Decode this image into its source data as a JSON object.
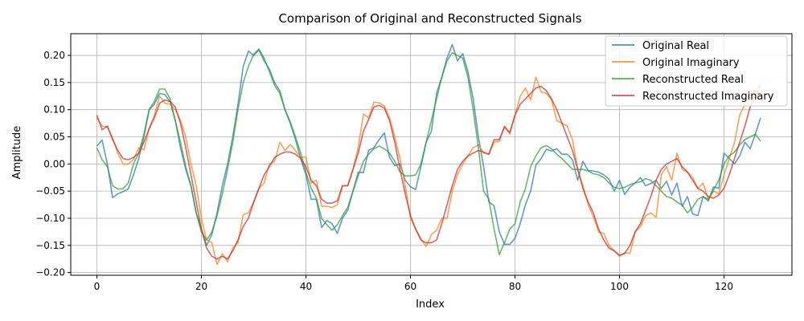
{
  "chart_data": {
    "type": "line",
    "title": "Comparison of Original and Reconstructed Signals",
    "xlabel": "Index",
    "ylabel": "Amplitude",
    "xlim": [
      -5,
      133
    ],
    "ylim": [
      -0.205,
      0.24
    ],
    "xticks": [
      0,
      20,
      40,
      60,
      80,
      100,
      120
    ],
    "yticks": [
      -0.2,
      -0.15,
      -0.1,
      -0.05,
      0.0,
      0.05,
      0.1,
      0.15,
      0.2
    ],
    "ytick_labels": [
      "−0.20",
      "−0.15",
      "−0.10",
      "−0.05",
      "0.00",
      "0.05",
      "0.10",
      "0.15",
      "0.20"
    ],
    "grid": true,
    "legend_position": "top-right",
    "series": [
      {
        "name": "Original Real",
        "color": "#1f77b4",
        "values": [
          0.033,
          0.044,
          0.0,
          -0.062,
          -0.055,
          -0.051,
          -0.046,
          -0.02,
          0.01,
          0.05,
          0.1,
          0.11,
          0.13,
          0.128,
          0.115,
          0.08,
          0.03,
          -0.01,
          -0.04,
          -0.09,
          -0.12,
          -0.15,
          -0.13,
          -0.09,
          -0.04,
          0.0,
          0.05,
          0.11,
          0.18,
          0.208,
          0.2,
          0.21,
          0.19,
          0.175,
          0.15,
          0.135,
          0.1,
          0.075,
          0.045,
          0.01,
          -0.02,
          -0.065,
          -0.065,
          -0.117,
          -0.104,
          -0.11,
          -0.128,
          -0.1,
          -0.085,
          -0.05,
          -0.015,
          -0.016,
          0.025,
          0.03,
          0.045,
          0.057,
          0.012,
          -0.003,
          0.0,
          -0.03,
          -0.042,
          -0.047,
          -0.005,
          0.04,
          0.06,
          0.13,
          0.16,
          0.195,
          0.22,
          0.19,
          0.203,
          0.17,
          0.12,
          0.05,
          -0.005,
          -0.07,
          -0.077,
          -0.125,
          -0.148,
          -0.148,
          -0.137,
          -0.11,
          -0.075,
          -0.05,
          -0.002,
          0.01,
          0.027,
          0.024,
          0.028,
          0.018,
          0.018,
          0.008,
          -0.03,
          0.005,
          -0.012,
          -0.013,
          -0.015,
          -0.02,
          -0.028,
          -0.05,
          -0.03,
          -0.056,
          -0.043,
          -0.035,
          -0.025,
          -0.04,
          -0.036,
          -0.03,
          -0.045,
          -0.032,
          -0.057,
          -0.035,
          -0.078,
          -0.06,
          -0.092,
          -0.095,
          -0.06,
          -0.068,
          -0.042,
          -0.045,
          0.02,
          0.01,
          0.0,
          0.015,
          0.04,
          0.028,
          0.055,
          0.085
        ]
      },
      {
        "name": "Original Imaginary",
        "color": "#ff7f0e",
        "values": [
          0.085,
          0.07,
          0.068,
          0.048,
          0.02,
          0.0,
          0.0,
          0.008,
          0.03,
          0.026,
          0.065,
          0.09,
          0.125,
          0.112,
          0.11,
          0.1,
          0.08,
          0.05,
          0.0,
          -0.04,
          -0.1,
          -0.14,
          -0.145,
          -0.185,
          -0.165,
          -0.18,
          -0.155,
          -0.145,
          -0.093,
          -0.09,
          -0.07,
          -0.045,
          -0.035,
          0.0,
          0.005,
          0.04,
          0.025,
          0.036,
          0.025,
          0.012,
          0.013,
          -0.035,
          -0.03,
          -0.078,
          -0.078,
          -0.08,
          -0.075,
          -0.04,
          -0.04,
          -0.01,
          0.03,
          0.092,
          0.085,
          0.114,
          0.113,
          0.107,
          0.085,
          0.05,
          0.01,
          -0.04,
          -0.1,
          -0.12,
          -0.138,
          -0.152,
          -0.13,
          -0.122,
          -0.1,
          -0.1,
          -0.05,
          -0.02,
          0.0,
          0.015,
          0.03,
          0.035,
          0.02,
          0.018,
          0.04,
          0.042,
          0.07,
          0.055,
          0.09,
          0.125,
          0.14,
          0.118,
          0.16,
          0.133,
          0.13,
          0.118,
          0.08,
          0.075,
          0.07,
          0.045,
          -0.01,
          -0.04,
          -0.075,
          -0.097,
          -0.125,
          -0.128,
          -0.15,
          -0.16,
          -0.17,
          -0.163,
          -0.165,
          -0.125,
          -0.115,
          -0.095,
          -0.09,
          -0.098,
          -0.02,
          -0.005,
          -0.03,
          0.02,
          -0.01,
          -0.015,
          -0.025,
          -0.045,
          -0.035,
          -0.065,
          -0.05,
          -0.055,
          -0.02,
          0.01,
          0.04,
          0.09,
          0.11,
          0.13,
          0.135,
          0.148
        ]
      },
      {
        "name": "Reconstructed Real",
        "color": "#2ca02c",
        "values": [
          0.03,
          0.008,
          -0.005,
          -0.04,
          -0.046,
          -0.046,
          -0.035,
          0.0,
          0.02,
          0.055,
          0.1,
          0.115,
          0.138,
          0.138,
          0.12,
          0.08,
          0.04,
          -0.005,
          -0.04,
          -0.09,
          -0.125,
          -0.14,
          -0.125,
          -0.095,
          -0.055,
          -0.01,
          0.04,
          0.1,
          0.15,
          0.18,
          0.202,
          0.212,
          0.195,
          0.17,
          0.145,
          0.13,
          0.1,
          0.078,
          0.05,
          0.02,
          -0.015,
          -0.045,
          -0.063,
          -0.1,
          -0.112,
          -0.122,
          -0.112,
          -0.095,
          -0.08,
          -0.05,
          -0.022,
          0.005,
          0.018,
          0.028,
          0.033,
          0.028,
          0.02,
          0.005,
          -0.015,
          -0.022,
          -0.022,
          -0.02,
          0.0,
          0.04,
          0.08,
          0.12,
          0.16,
          0.19,
          0.205,
          0.2,
          0.195,
          0.16,
          0.1,
          0.03,
          -0.05,
          -0.065,
          -0.12,
          -0.167,
          -0.145,
          -0.12,
          -0.11,
          -0.07,
          -0.045,
          -0.005,
          0.015,
          0.03,
          0.034,
          0.028,
          0.018,
          0.01,
          0.0,
          -0.01,
          -0.01,
          -0.01,
          -0.013,
          -0.018,
          -0.02,
          -0.025,
          -0.035,
          -0.043,
          -0.045,
          -0.043,
          -0.038,
          -0.035,
          -0.033,
          -0.027,
          -0.03,
          -0.04,
          -0.05,
          -0.06,
          -0.063,
          -0.07,
          -0.076,
          -0.09,
          -0.08,
          -0.065,
          -0.06,
          -0.065,
          -0.048,
          -0.03,
          0.0,
          0.015,
          0.022,
          0.035,
          0.045,
          0.05,
          0.055,
          0.042
        ]
      },
      {
        "name": "Reconstructed Imaginary",
        "color": "#d62728",
        "values": [
          0.09,
          0.063,
          0.07,
          0.045,
          0.025,
          0.01,
          0.008,
          0.012,
          0.02,
          0.04,
          0.065,
          0.085,
          0.112,
          0.118,
          0.115,
          0.105,
          0.075,
          0.03,
          -0.02,
          -0.07,
          -0.12,
          -0.155,
          -0.17,
          -0.175,
          -0.17,
          -0.175,
          -0.16,
          -0.14,
          -0.115,
          -0.1,
          -0.07,
          -0.045,
          -0.02,
          -0.005,
          0.012,
          0.018,
          0.022,
          0.022,
          0.018,
          0.01,
          -0.005,
          -0.03,
          -0.04,
          -0.065,
          -0.072,
          -0.072,
          -0.068,
          -0.04,
          -0.04,
          -0.01,
          0.02,
          0.06,
          0.082,
          0.105,
          0.108,
          0.103,
          0.08,
          0.04,
          -0.01,
          -0.055,
          -0.095,
          -0.12,
          -0.14,
          -0.145,
          -0.145,
          -0.14,
          -0.11,
          -0.075,
          -0.04,
          -0.01,
          0.005,
          0.015,
          0.02,
          0.025,
          0.022,
          0.018,
          0.045,
          0.045,
          0.068,
          0.058,
          0.09,
          0.11,
          0.12,
          0.13,
          0.14,
          0.143,
          0.135,
          0.12,
          0.1,
          0.075,
          0.05,
          0.025,
          -0.01,
          -0.045,
          -0.07,
          -0.09,
          -0.12,
          -0.14,
          -0.155,
          -0.16,
          -0.168,
          -0.165,
          -0.15,
          -0.125,
          -0.11,
          -0.085,
          -0.06,
          -0.03,
          -0.01,
          0.0,
          0.005,
          0.01,
          -0.005,
          -0.015,
          -0.03,
          -0.045,
          -0.05,
          -0.06,
          -0.063,
          -0.057,
          -0.045,
          -0.02,
          0.01,
          0.04,
          0.07,
          0.105,
          0.125,
          0.145
        ]
      }
    ]
  }
}
